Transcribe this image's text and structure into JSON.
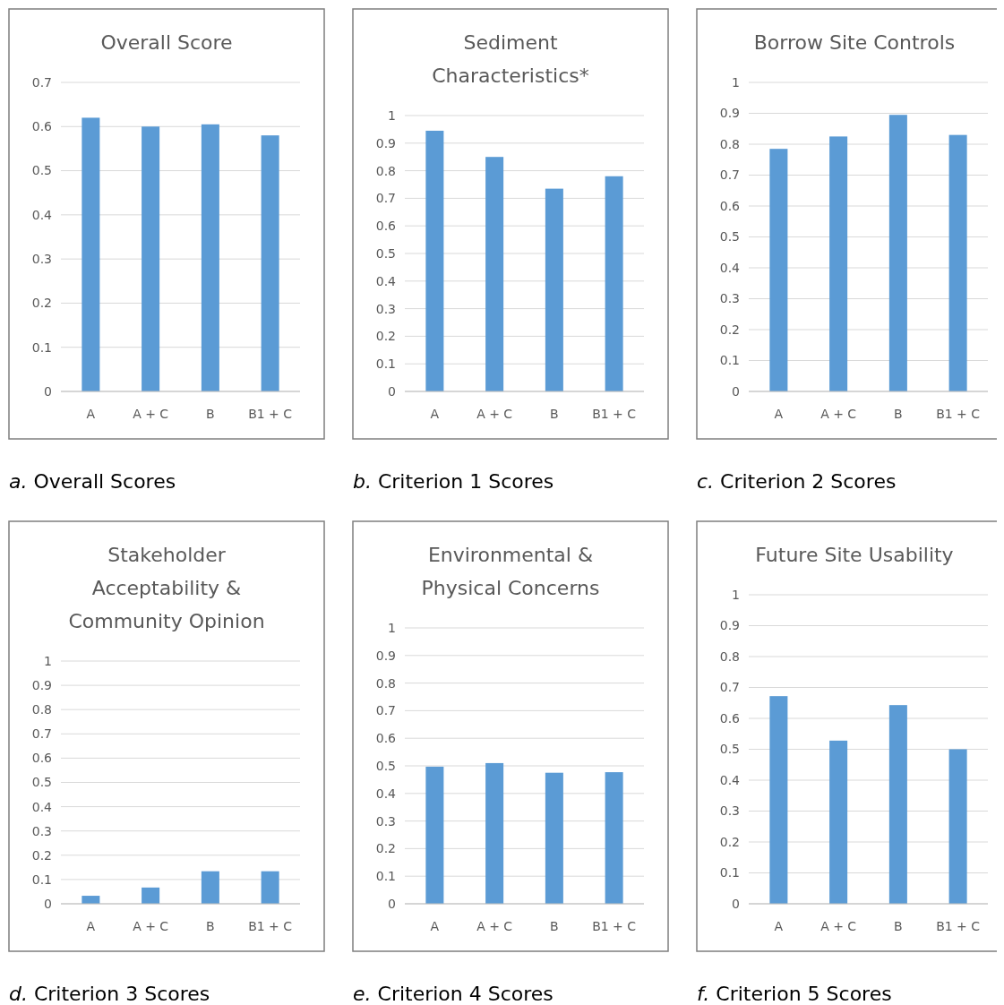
{
  "chart_data": [
    {
      "type": "bar",
      "title": "Overall Score",
      "categories": [
        "A",
        "A + C",
        "B",
        "B1 + C"
      ],
      "values": [
        0.62,
        0.6,
        0.605,
        0.58
      ],
      "color": "#5b9bd5",
      "ylim": [
        0,
        0.7
      ],
      "yticks": [
        0,
        0.1,
        0.2,
        0.3,
        0.4,
        0.5,
        0.6,
        0.7
      ],
      "grid": "y",
      "annotations": [
        "a. Overall Scores"
      ]
    },
    {
      "type": "bar",
      "title": "Sediment Characteristics*",
      "categories": [
        "A",
        "A + C",
        "B",
        "B1 + C"
      ],
      "values": [
        0.945,
        0.85,
        0.735,
        0.78
      ],
      "color": "#5b9bd5",
      "ylim": [
        0,
        1
      ],
      "yticks": [
        0,
        0.1,
        0.2,
        0.3,
        0.4,
        0.5,
        0.6,
        0.7,
        0.8,
        0.9,
        1
      ],
      "grid": "y",
      "annotations": [
        "b. Criterion 1 Scores"
      ]
    },
    {
      "type": "bar",
      "title": "Borrow Site Controls",
      "categories": [
        "A",
        "A + C",
        "B",
        "B1 + C"
      ],
      "values": [
        0.785,
        0.825,
        0.895,
        0.83
      ],
      "color": "#5b9bd5",
      "ylim": [
        0,
        1
      ],
      "yticks": [
        0,
        0.1,
        0.2,
        0.3,
        0.4,
        0.5,
        0.6,
        0.7,
        0.8,
        0.9,
        1
      ],
      "grid": "y",
      "annotations": [
        "c. Criterion 2 Scores"
      ]
    },
    {
      "type": "bar",
      "title": "Stakeholder Acceptability & Community Opinion",
      "categories": [
        "A",
        "A + C",
        "B",
        "B1 + C"
      ],
      "values": [
        0.033,
        0.067,
        0.134,
        0.134
      ],
      "color": "#5b9bd5",
      "ylim": [
        0,
        1
      ],
      "yticks": [
        0,
        0.1,
        0.2,
        0.3,
        0.4,
        0.5,
        0.6,
        0.7,
        0.8,
        0.9,
        1
      ],
      "grid": "y",
      "annotations": [
        "d. Criterion 3 Scores"
      ]
    },
    {
      "type": "bar",
      "title": "Environmental & Physical Concerns",
      "categories": [
        "A",
        "A + C",
        "B",
        "B1 + C"
      ],
      "values": [
        0.497,
        0.51,
        0.475,
        0.477
      ],
      "color": "#5b9bd5",
      "ylim": [
        0,
        1
      ],
      "yticks": [
        0,
        0.1,
        0.2,
        0.3,
        0.4,
        0.5,
        0.6,
        0.7,
        0.8,
        0.9,
        1
      ],
      "grid": "y",
      "annotations": [
        "e. Criterion 4 Scores"
      ]
    },
    {
      "type": "bar",
      "title": "Future Site Usability",
      "categories": [
        "A",
        "A + C",
        "B",
        "B1 + C"
      ],
      "values": [
        0.672,
        0.528,
        0.643,
        0.5
      ],
      "color": "#5b9bd5",
      "ylim": [
        0,
        1
      ],
      "yticks": [
        0,
        0.1,
        0.2,
        0.3,
        0.4,
        0.5,
        0.6,
        0.7,
        0.8,
        0.9,
        1
      ],
      "grid": "y",
      "annotations": [
        "f. Criterion 5 Scores"
      ]
    }
  ]
}
